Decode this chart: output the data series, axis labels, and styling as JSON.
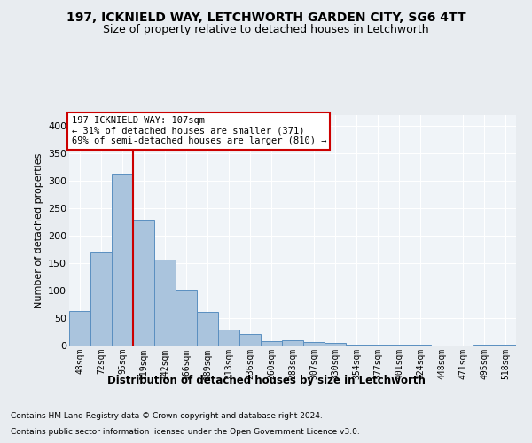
{
  "title1": "197, ICKNIELD WAY, LETCHWORTH GARDEN CITY, SG6 4TT",
  "title2": "Size of property relative to detached houses in Letchworth",
  "xlabel": "Distribution of detached houses by size in Letchworth",
  "ylabel": "Number of detached properties",
  "categories": [
    "48sqm",
    "72sqm",
    "95sqm",
    "119sqm",
    "142sqm",
    "166sqm",
    "189sqm",
    "213sqm",
    "236sqm",
    "260sqm",
    "283sqm",
    "307sqm",
    "330sqm",
    "354sqm",
    "377sqm",
    "401sqm",
    "424sqm",
    "448sqm",
    "471sqm",
    "495sqm",
    "518sqm"
  ],
  "values": [
    63,
    172,
    314,
    229,
    156,
    102,
    61,
    29,
    21,
    8,
    10,
    7,
    5,
    2,
    1,
    1,
    1,
    0,
    0,
    2,
    1
  ],
  "bar_color": "#aac4dd",
  "bar_edge_color": "#5a8fc0",
  "vline_color": "#cc0000",
  "annotation_text": "197 ICKNIELD WAY: 107sqm\n← 31% of detached houses are smaller (371)\n69% of semi-detached houses are larger (810) →",
  "annotation_box_color": "#ffffff",
  "annotation_box_edge": "#cc0000",
  "footer1": "Contains HM Land Registry data © Crown copyright and database right 2024.",
  "footer2": "Contains public sector information licensed under the Open Government Licence v3.0.",
  "ylim": [
    0,
    420
  ],
  "yticks": [
    0,
    50,
    100,
    150,
    200,
    250,
    300,
    350,
    400
  ],
  "bg_color": "#e8ecf0",
  "plot_bg_color": "#f0f4f8",
  "grid_color": "#ffffff",
  "title1_fontsize": 10,
  "title2_fontsize": 9
}
